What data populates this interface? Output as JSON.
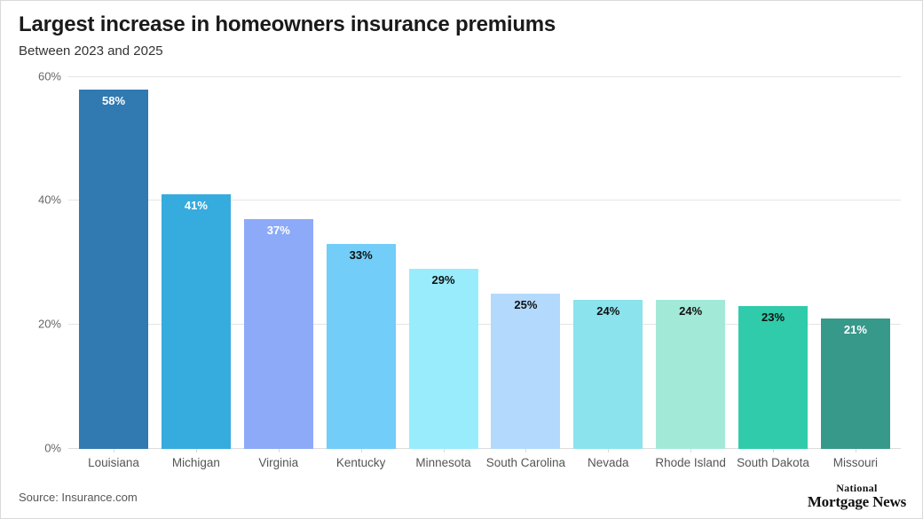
{
  "header": {
    "title": "Largest increase in homeowners insurance premiums",
    "subtitle": "Between 2023 and 2025"
  },
  "chart_data": {
    "type": "bar",
    "title": "Largest increase in homeowners insurance premiums",
    "subtitle": "Between 2023 and 2025",
    "categories": [
      "Louisiana",
      "Michigan",
      "Virginia",
      "Kentucky",
      "Minnesota",
      "South Carolina",
      "Nevada",
      "Rhode Island",
      "South Dakota",
      "Missouri"
    ],
    "values": [
      58,
      41,
      37,
      33,
      29,
      25,
      24,
      24,
      23,
      21
    ],
    "value_labels": [
      "58%",
      "41%",
      "37%",
      "33%",
      "29%",
      "25%",
      "24%",
      "24%",
      "23%",
      "21%"
    ],
    "bar_colors": [
      "#3179b1",
      "#36abdd",
      "#8caaf8",
      "#72cdf8",
      "#99ecfc",
      "#b3d9fc",
      "#8ae3ed",
      "#a3e9d8",
      "#2fcbab",
      "#37998a"
    ],
    "value_label_colors": [
      "#ffffff",
      "#ffffff",
      "#ffffff",
      "#111111",
      "#111111",
      "#111111",
      "#111111",
      "#111111",
      "#111111",
      "#ffffff"
    ],
    "xlabel": "",
    "ylabel": "",
    "ylim": [
      0,
      60
    ],
    "yticks": [
      0,
      20,
      40,
      60
    ],
    "ytick_labels": [
      "0%",
      "20%",
      "40%",
      "60%"
    ],
    "grid": "horizontal",
    "legend": "none",
    "gridline_color": "#e4e4e4"
  },
  "footer": {
    "source": "Source: Insurance.com",
    "logo_line1": "National",
    "logo_line2": "Mortgage News"
  }
}
